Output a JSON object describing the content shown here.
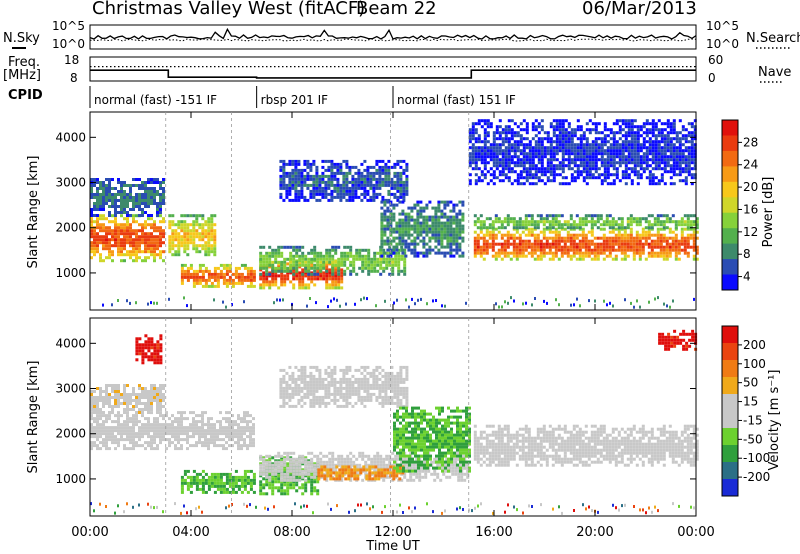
{
  "header": {
    "station": "Christmas Valley West (fitACF)",
    "beam": "Beam 22",
    "date": "06/Mar/2013"
  },
  "noise_panel": {
    "left_label": "N.Sky",
    "right_label": "N.Search",
    "ticks_left": [
      "10^5",
      "10^0"
    ],
    "ticks_right": [
      "10^5",
      "10^0"
    ]
  },
  "freq_panel": {
    "left_label_1": "Freq.",
    "left_label_2": "[MHz]",
    "right_label": "Nave",
    "ticks_left": [
      "18",
      "8"
    ],
    "ticks_right": [
      "60",
      "0"
    ],
    "freq_levels": [
      {
        "x": 0.0,
        "y": 12.5
      },
      {
        "x": 3.1,
        "y": 9.6
      },
      {
        "x": 6.6,
        "y": 9.3
      },
      {
        "x": 15.1,
        "y": 12.5
      },
      {
        "x": 24.0,
        "y": 12.5
      }
    ],
    "nave_value": 36
  },
  "cpid": {
    "label": "CPID",
    "segments": [
      {
        "start": 0.0,
        "end": 6.6,
        "name": "normal (fast) -151 IF"
      },
      {
        "start": 6.6,
        "end": 12.0,
        "name": "rbsp 201 IF"
      },
      {
        "start": 12.0,
        "end": 24.0,
        "name": "normal (fast) 151 IF"
      }
    ]
  },
  "chart_data": [
    {
      "type": "heatmap",
      "parameter": "power",
      "ylabel": "Slant Range [km]",
      "yticks": [
        1000,
        2000,
        3000,
        4000
      ],
      "ylim": [
        180,
        4560
      ],
      "xlim": [
        0,
        24
      ],
      "colorbar_label": "Power [dB]",
      "colorbar_ticks": [
        "28",
        "24",
        "20",
        "16",
        "12",
        "8",
        "4"
      ],
      "colorbar_colors": [
        "#0a0aff",
        "#2a4cb3",
        "#3d8a6b",
        "#53b04d",
        "#86d13a",
        "#cfd62a",
        "#f7c81b",
        "#f79a16",
        "#f26a12",
        "#ea3b0f",
        "#e0110c"
      ],
      "bands": [
        {
          "t0": 0.0,
          "t1": 2.9,
          "r0": 1300,
          "r1": 2300,
          "level": 0.85
        },
        {
          "t0": 0.0,
          "t1": 2.9,
          "r0": 2300,
          "r1": 3100,
          "level": 0.2
        },
        {
          "t0": 3.1,
          "t1": 5.0,
          "r0": 1400,
          "r1": 2300,
          "level": 0.6
        },
        {
          "t0": 3.6,
          "t1": 6.5,
          "r0": 700,
          "r1": 1200,
          "level": 0.8
        },
        {
          "t0": 6.7,
          "t1": 10.0,
          "r0": 700,
          "r1": 1300,
          "level": 0.9
        },
        {
          "t0": 6.7,
          "t1": 12.5,
          "r0": 1000,
          "r1": 1600,
          "level": 0.4
        },
        {
          "t0": 7.5,
          "t1": 12.6,
          "r0": 2600,
          "r1": 3500,
          "level": 0.15
        },
        {
          "t0": 11.5,
          "t1": 14.8,
          "r0": 1400,
          "r1": 2600,
          "level": 0.25
        },
        {
          "t0": 15.2,
          "t1": 24.0,
          "r0": 1300,
          "r1": 2000,
          "level": 0.85
        },
        {
          "t0": 15.2,
          "t1": 24.0,
          "r0": 2000,
          "r1": 2300,
          "level": 0.4
        },
        {
          "t0": 15.0,
          "t1": 24.0,
          "r0": 3000,
          "r1": 4400,
          "level": 0.1
        }
      ]
    },
    {
      "type": "heatmap",
      "parameter": "velocity",
      "ylabel": "Slant Range [km]",
      "yticks": [
        1000,
        2000,
        3000,
        4000
      ],
      "ylim": [
        180,
        4560
      ],
      "xlim": [
        0,
        24
      ],
      "colorbar_label": "Velocity [m s⁻¹]",
      "colorbar_ticks": [
        "200",
        "100",
        "50",
        "15",
        "-15",
        "-50",
        "-100",
        "-200"
      ],
      "colorbar_colors": [
        "#1a2bd6",
        "#2b6f86",
        "#2f9f3c",
        "#6cd12f",
        "#c8c8c8",
        "#c8c8c8",
        "#f0a91a",
        "#f07b14",
        "#ea4410",
        "#e00e0c"
      ],
      "bands": [
        {
          "t0": 0.0,
          "t1": 6.5,
          "r0": 1700,
          "r1": 2500,
          "level": 0.5
        },
        {
          "t0": 0.0,
          "t1": 2.9,
          "r0": 2500,
          "r1": 3100,
          "level": 0.55
        },
        {
          "t0": 1.8,
          "t1": 2.8,
          "r0": 3600,
          "r1": 4200,
          "level": 0.95
        },
        {
          "t0": 3.6,
          "t1": 6.5,
          "r0": 700,
          "r1": 1200,
          "level": 0.3
        },
        {
          "t0": 6.7,
          "t1": 9.0,
          "r0": 700,
          "r1": 1500,
          "level": 0.3
        },
        {
          "t0": 6.7,
          "t1": 15.0,
          "r0": 1000,
          "r1": 1600,
          "level": 0.5
        },
        {
          "t0": 9.0,
          "t1": 12.4,
          "r0": 1000,
          "r1": 1300,
          "level": 0.7
        },
        {
          "t0": 7.5,
          "t1": 12.6,
          "r0": 2600,
          "r1": 3500,
          "level": 0.5
        },
        {
          "t0": 12.0,
          "t1": 15.0,
          "r0": 1200,
          "r1": 2600,
          "level": 0.3
        },
        {
          "t0": 15.2,
          "t1": 24.0,
          "r0": 1300,
          "r1": 2200,
          "level": 0.5
        },
        {
          "t0": 22.5,
          "t1": 24.0,
          "r0": 3900,
          "r1": 4300,
          "level": 0.95
        }
      ]
    }
  ],
  "xaxis": {
    "label": "Time UT",
    "ticks": [
      "00:00",
      "04:00",
      "08:00",
      "12:00",
      "16:00",
      "20:00",
      "00:00"
    ]
  }
}
